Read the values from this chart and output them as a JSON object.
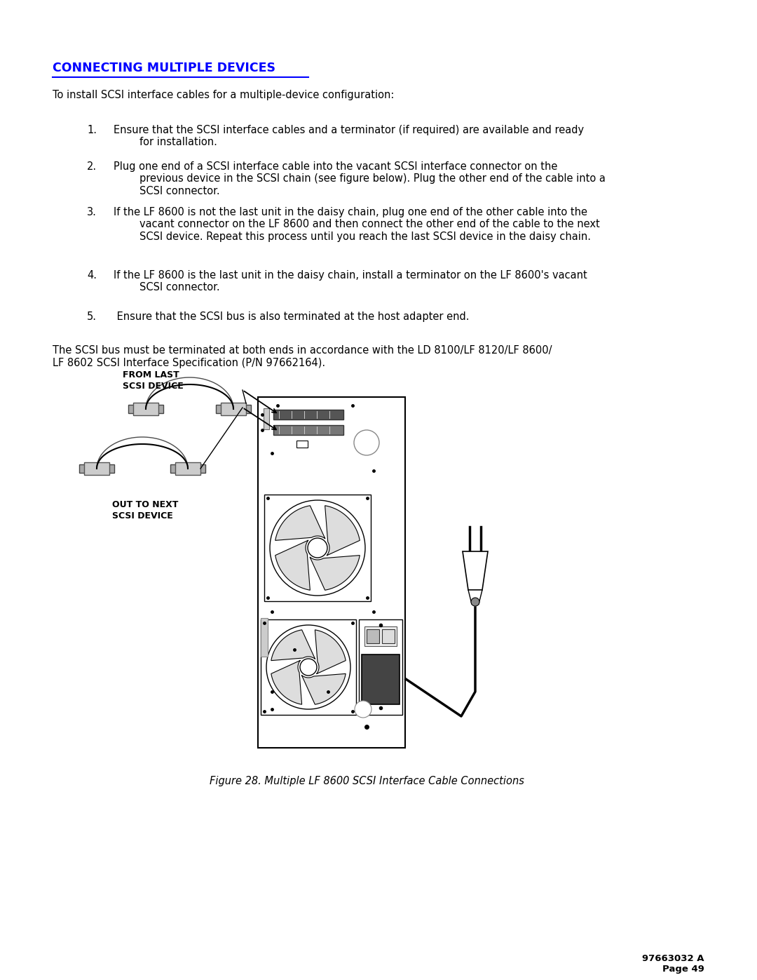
{
  "title": "CONNECTING MULTIPLE DEVICES",
  "title_color": "#0000FF",
  "title_fontsize": 12.5,
  "intro_text": "To install SCSI interface cables for a multiple-device configuration:",
  "numbered_items": [
    {
      "num": "1.",
      "text": "Ensure that the SCSI interface cables and a terminator (if required) are available and ready\n        for installation."
    },
    {
      "num": "2.",
      "text": "Plug one end of a SCSI interface cable into the vacant SCSI interface connector on the\n        previous device in the SCSI chain (see figure below). Plug the other end of the cable into a\n        SCSI connector."
    },
    {
      "num": "3.",
      "text": "If the LF 8600 is not the last unit in the daisy chain, plug one end of the other cable into the\n        vacant connector on the LF 8600 and then connect the other end of the cable to the next\n        SCSI device. Repeat this process until you reach the last SCSI device in the daisy chain."
    },
    {
      "num": "4.",
      "text": "If the LF 8600 is the last unit in the daisy chain, install a terminator on the LF 8600's vacant\n        SCSI connector."
    },
    {
      "num": "5.",
      "text": " Ensure that the SCSI bus is also terminated at the host adapter end."
    }
  ],
  "footer_text": "The SCSI bus must be terminated at both ends in accordance with the LD 8100/LF 8120/LF 8600/\nLF 8602 SCSI Interface Specification (P/N 97662164).",
  "figure_caption": "Figure 28. Multiple LF 8600 SCSI Interface Cable Connections",
  "page_number": "97663032 A\nPage 49",
  "bg_color": "#FFFFFF",
  "text_color": "#000000",
  "body_fontsize": 10.5,
  "caption_fontsize": 10.5
}
